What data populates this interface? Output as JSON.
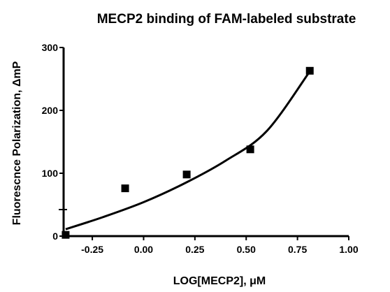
{
  "chart_data": {
    "type": "scatter",
    "title": "MECP2 binding of FAM-labeled substrate",
    "xlabel": "LOG[MECP2], μM",
    "ylabel": "Fluorescnce Polarization, ΔmP",
    "xlim": [
      -0.39,
      1.0
    ],
    "ylim": [
      0,
      300
    ],
    "x_ticks": [
      -0.25,
      0.0,
      0.25,
      0.5,
      0.75,
      1.0
    ],
    "x_tick_labels": [
      "-0.25",
      "0.00",
      "0.25",
      "0.50",
      "0.75",
      "1.00"
    ],
    "y_ticks": [
      0,
      100,
      200,
      300
    ],
    "y_tick_labels": [
      "0",
      "100",
      "200",
      "300"
    ],
    "grid": false,
    "series": [
      {
        "type": "scatter",
        "marker": "square",
        "x": [
          -0.38,
          -0.09,
          0.21,
          0.52,
          0.81
        ],
        "y": [
          2,
          76,
          98,
          138,
          263
        ]
      },
      {
        "type": "line",
        "x": [
          -0.38,
          -0.2,
          0.0,
          0.2,
          0.4,
          0.6,
          0.81
        ],
        "y": [
          11,
          30,
          54,
          84,
          120,
          167,
          262
        ]
      }
    ]
  }
}
